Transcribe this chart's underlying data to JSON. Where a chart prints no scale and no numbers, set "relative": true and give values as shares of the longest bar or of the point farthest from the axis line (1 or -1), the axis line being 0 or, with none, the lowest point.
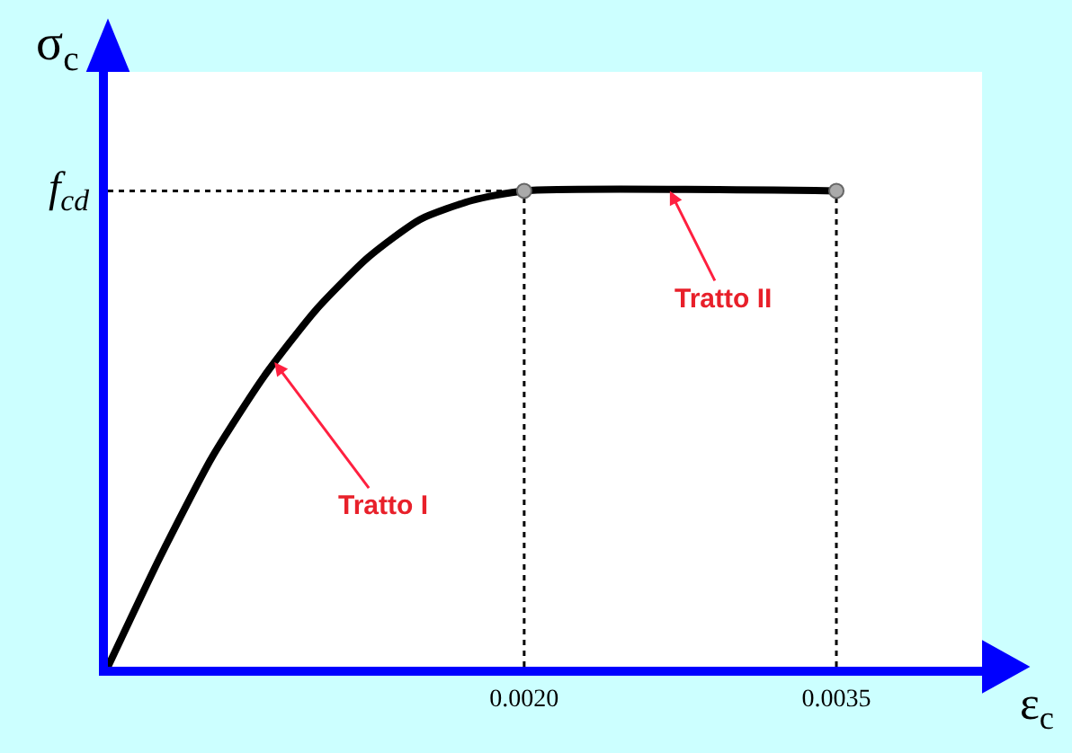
{
  "chart_data": {
    "type": "line",
    "relative": true,
    "xlabel": "ε$_{c}$",
    "ylabel": "σ$_{c}$",
    "x": [
      0,
      0.00025,
      0.0005,
      0.00075,
      0.001,
      0.00125,
      0.0015,
      0.00175,
      0.002,
      0.0035
    ],
    "series": [
      {
        "color": "#000000",
        "values": [
          0,
          0.23,
          0.44,
          0.61,
          0.75,
          0.86,
          0.94,
          0.98,
          1,
          1
        ]
      },
      {
        "type": "scatter",
        "color": "#aaaaaa",
        "marker": "circle",
        "x": [
          0.002,
          0.0035
        ],
        "values": [
          1,
          1
        ]
      }
    ],
    "xlim": [
      0,
      0.0042
    ],
    "xticks": [
      {
        "value": 0.002,
        "label": "0.0020"
      },
      {
        "value": 0.0035,
        "label": "0.0035"
      }
    ],
    "ref_lines": [
      {
        "axis": "y",
        "value": 1,
        "label": "f$_{cd}$",
        "line_style": "dotted",
        "color": "#000000"
      },
      {
        "axis": "x",
        "value": 0.002,
        "line_style": "dotted",
        "color": "#000000"
      },
      {
        "axis": "x",
        "value": 0.0035,
        "line_style": "dotted",
        "color": "#000000"
      }
    ],
    "annotations": [
      {
        "text": "Tratto I",
        "x": 0.0008,
        "y": 0.64
      },
      {
        "text": "Tratto II",
        "x": 0.0027,
        "y": 1
      }
    ],
    "marker": "none",
    "line_style": "solid",
    "grid": false,
    "legend": false
  }
}
